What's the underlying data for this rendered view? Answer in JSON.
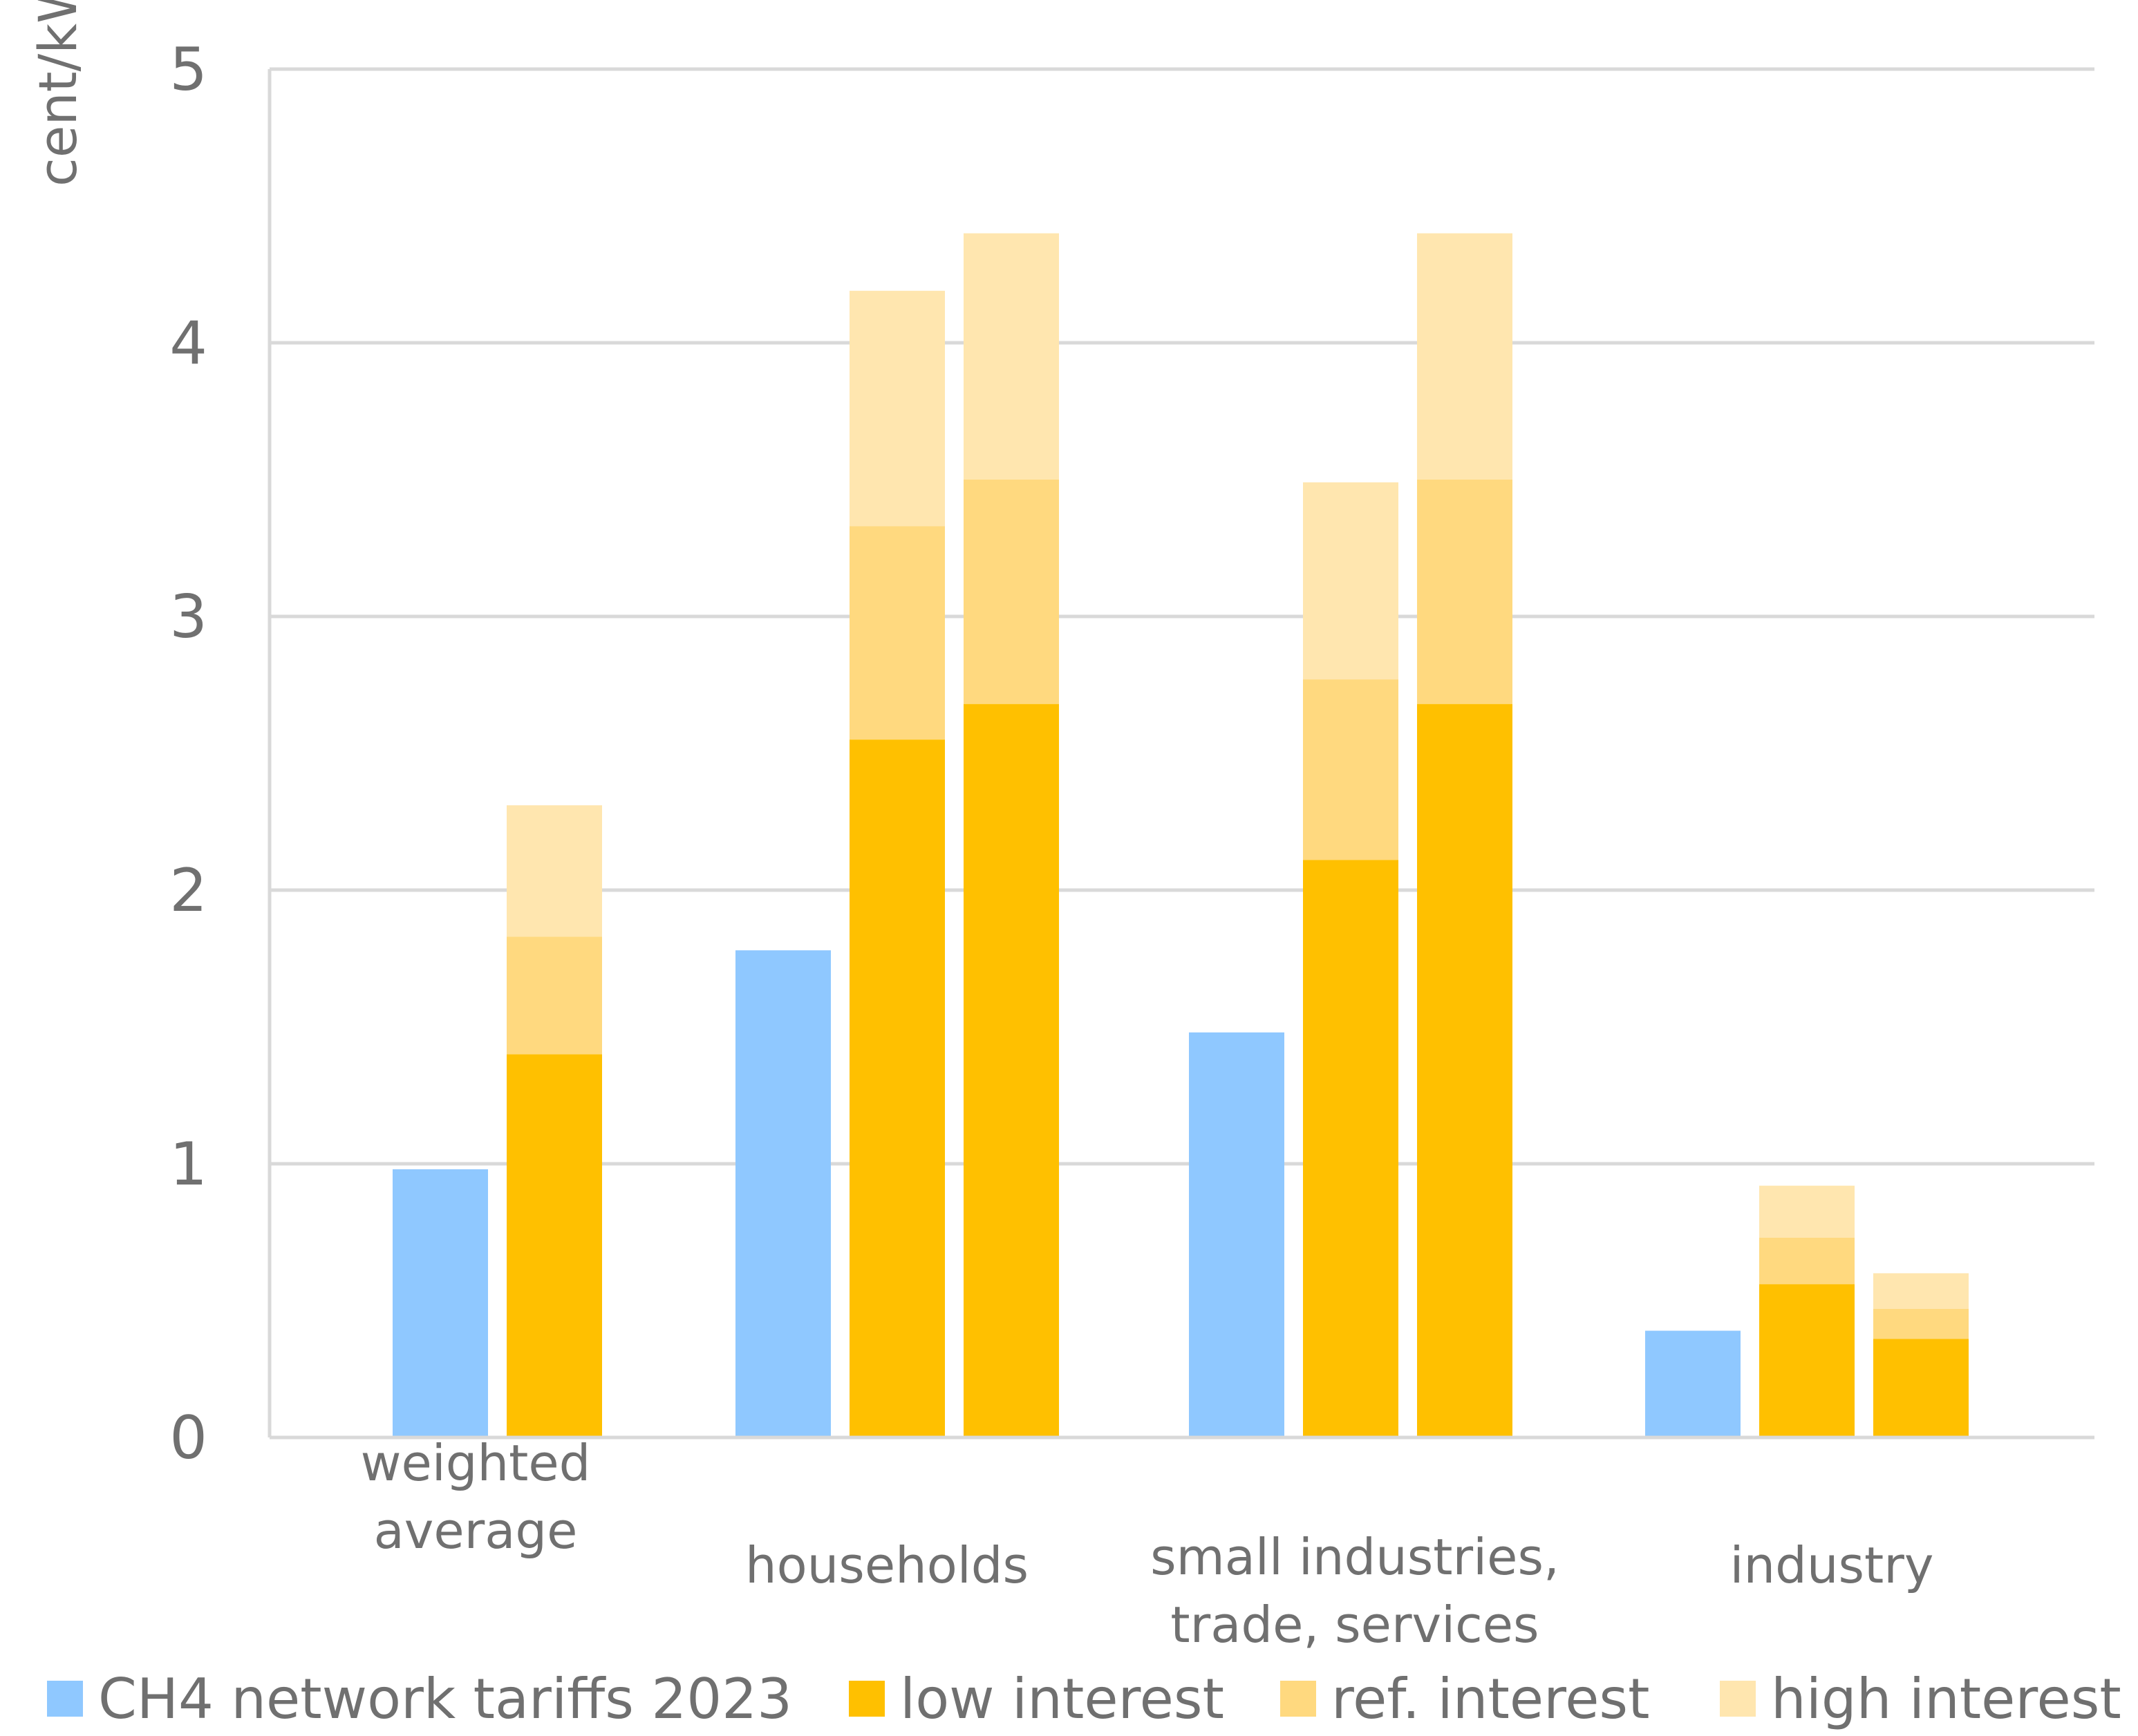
{
  "chart_data": {
    "type": "bar",
    "ylabel": "cent/kWh",
    "ylim": [
      0,
      5
    ],
    "yticks": [
      "0",
      "1",
      "2",
      "3",
      "4",
      "5"
    ],
    "grid": true,
    "legend_position": "bottom",
    "categories": [
      {
        "lines": [
          "weighted",
          "average"
        ]
      },
      {
        "lines": [
          "households"
        ]
      },
      {
        "lines": [
          "small industries,",
          "trade, services"
        ]
      },
      {
        "lines": [
          "industry"
        ]
      }
    ],
    "legend": [
      {
        "name": "CH4 network tariffs 2023",
        "color": "#8FC8FF"
      },
      {
        "name": "low interest",
        "color": "#FFC000"
      },
      {
        "name": "ref. interest",
        "color": "#FFD97F"
      },
      {
        "name": "high interest",
        "color": "#FFE6AF"
      }
    ],
    "bars": [
      {
        "category": 0,
        "slot": 0,
        "type": "ch4",
        "value": 0.98
      },
      {
        "category": 0,
        "slot": 1,
        "type": "scenario",
        "low": 1.4,
        "ref": 1.83,
        "high": 2.31
      },
      {
        "category": 1,
        "slot": 0,
        "type": "ch4",
        "value": 1.78
      },
      {
        "category": 1,
        "slot": 1,
        "type": "scenario",
        "low": 2.55,
        "ref": 3.33,
        "high": 4.19
      },
      {
        "category": 1,
        "slot": 2,
        "type": "scenario",
        "low": 2.68,
        "ref": 3.5,
        "high": 4.4
      },
      {
        "category": 2,
        "slot": 0,
        "type": "ch4",
        "value": 1.48
      },
      {
        "category": 2,
        "slot": 1,
        "type": "scenario",
        "low": 2.11,
        "ref": 2.77,
        "high": 3.49
      },
      {
        "category": 2,
        "slot": 2,
        "type": "scenario",
        "low": 2.68,
        "ref": 3.5,
        "high": 4.4
      },
      {
        "category": 3,
        "slot": 0,
        "type": "ch4",
        "value": 0.39
      },
      {
        "category": 3,
        "slot": 1,
        "type": "scenario",
        "low": 0.56,
        "ref": 0.73,
        "high": 0.92
      },
      {
        "category": 3,
        "slot": 2,
        "type": "scenario",
        "low": 0.36,
        "ref": 0.47,
        "high": 0.6
      }
    ]
  }
}
